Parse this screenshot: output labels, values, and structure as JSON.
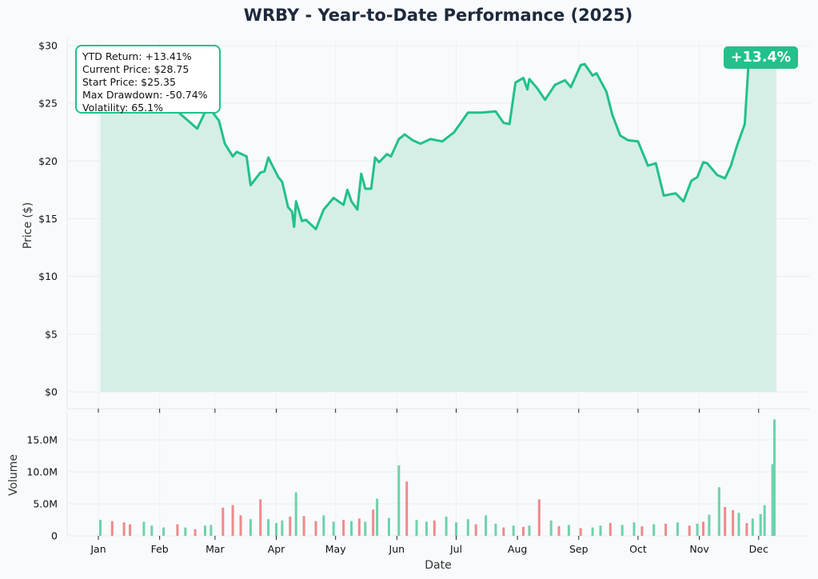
{
  "chart_data": [
    {
      "type": "area",
      "title": "WRBY - Year-to-Date Performance (2025)",
      "ylabel": "Price ($)",
      "yticks": [
        "$0",
        "$5",
        "$10",
        "$15",
        "$20",
        "$25",
        "$30"
      ],
      "ylim": [
        0,
        30
      ],
      "grid": true,
      "line_color": "#22c08a",
      "fill_color": "#d5efe6",
      "x_dates": [
        "2025-01-02",
        "2025-01-10",
        "2025-01-20",
        "2025-01-30",
        "2025-02-10",
        "2025-02-20",
        "2025-02-25",
        "2025-02-27",
        "2025-03-03",
        "2025-03-06",
        "2025-03-10",
        "2025-03-12",
        "2025-03-17",
        "2025-03-19",
        "2025-03-24",
        "2025-03-26",
        "2025-03-28",
        "2025-04-02",
        "2025-04-04",
        "2025-04-07",
        "2025-04-09",
        "2025-04-10",
        "2025-04-11",
        "2025-04-14",
        "2025-04-16",
        "2025-04-21",
        "2025-04-25",
        "2025-04-30",
        "2025-05-05",
        "2025-05-07",
        "2025-05-09",
        "2025-05-12",
        "2025-05-14",
        "2025-05-16",
        "2025-05-19",
        "2025-05-21",
        "2025-05-23",
        "2025-05-27",
        "2025-05-29",
        "2025-06-02",
        "2025-06-05",
        "2025-06-09",
        "2025-06-13",
        "2025-06-18",
        "2025-06-24",
        "2025-06-30",
        "2025-07-07",
        "2025-07-14",
        "2025-07-21",
        "2025-07-25",
        "2025-07-28",
        "2025-07-31",
        "2025-08-04",
        "2025-08-06",
        "2025-08-07",
        "2025-08-11",
        "2025-08-15",
        "2025-08-20",
        "2025-08-25",
        "2025-08-28",
        "2025-09-02",
        "2025-09-04",
        "2025-09-08",
        "2025-09-10",
        "2025-09-15",
        "2025-09-18",
        "2025-09-22",
        "2025-09-26",
        "2025-10-01",
        "2025-10-06",
        "2025-10-10",
        "2025-10-14",
        "2025-10-20",
        "2025-10-24",
        "2025-10-28",
        "2025-10-31",
        "2025-11-03",
        "2025-11-05",
        "2025-11-10",
        "2025-11-14",
        "2025-11-17",
        "2025-11-20",
        "2025-11-24",
        "2025-11-26",
        "2025-12-01",
        "2025-12-03",
        "2025-12-05",
        "2025-12-08",
        "2025-12-09",
        "2025-12-10"
      ],
      "prices": [
        25.35,
        25.2,
        24.8,
        25.6,
        24.3,
        22.8,
        24.6,
        24.4,
        23.5,
        21.5,
        20.4,
        20.8,
        20.4,
        17.9,
        19.0,
        19.1,
        20.3,
        18.6,
        18.2,
        16.0,
        15.6,
        14.3,
        16.5,
        14.8,
        14.9,
        14.1,
        15.8,
        16.8,
        16.2,
        17.5,
        16.5,
        15.8,
        18.9,
        17.6,
        17.6,
        20.3,
        19.9,
        20.6,
        20.4,
        21.9,
        22.3,
        21.8,
        21.5,
        21.9,
        21.7,
        22.5,
        24.2,
        24.2,
        24.3,
        23.3,
        23.2,
        26.8,
        27.2,
        26.2,
        27.1,
        26.3,
        25.3,
        26.6,
        27.0,
        26.4,
        28.3,
        28.4,
        27.4,
        27.6,
        26.0,
        24.0,
        22.2,
        21.8,
        21.7,
        19.6,
        19.8,
        17.0,
        17.2,
        16.5,
        18.3,
        18.6,
        19.9,
        19.8,
        18.8,
        18.5,
        19.6,
        21.3,
        23.2,
        28.75,
        28.75,
        28.75,
        28.75,
        28.75,
        28.75,
        28.75
      ]
    },
    {
      "type": "bar",
      "xlabel": "Date",
      "ylabel": "Volume",
      "yticks": [
        "0",
        "5.0M",
        "10.0M",
        "15.0M"
      ],
      "ylim": [
        0,
        19000000
      ],
      "xticks": [
        "Jan",
        "Feb",
        "Mar",
        "Apr",
        "May",
        "Jun",
        "Jul",
        "Aug",
        "Sep",
        "Oct",
        "Nov",
        "Dec"
      ],
      "xtick_dates": [
        "2025-01-01",
        "2025-02-01",
        "2025-03-01",
        "2025-04-01",
        "2025-05-01",
        "2025-06-01",
        "2025-07-01",
        "2025-08-01",
        "2025-09-01",
        "2025-10-01",
        "2025-11-01",
        "2025-12-01"
      ],
      "up_color": "#6fd1ab",
      "down_color": "#ee8a8a",
      "vol_dates": [
        "2025-01-02",
        "2025-01-08",
        "2025-01-14",
        "2025-01-17",
        "2025-01-24",
        "2025-01-28",
        "2025-02-03",
        "2025-02-10",
        "2025-02-14",
        "2025-02-19",
        "2025-02-24",
        "2025-02-27",
        "2025-03-05",
        "2025-03-10",
        "2025-03-14",
        "2025-03-19",
        "2025-03-24",
        "2025-03-28",
        "2025-04-01",
        "2025-04-04",
        "2025-04-08",
        "2025-04-11",
        "2025-04-15",
        "2025-04-21",
        "2025-04-25",
        "2025-04-30",
        "2025-05-05",
        "2025-05-09",
        "2025-05-13",
        "2025-05-16",
        "2025-05-20",
        "2025-05-22",
        "2025-05-28",
        "2025-06-02",
        "2025-06-06",
        "2025-06-11",
        "2025-06-16",
        "2025-06-20",
        "2025-06-26",
        "2025-07-01",
        "2025-07-07",
        "2025-07-11",
        "2025-07-16",
        "2025-07-21",
        "2025-07-25",
        "2025-07-30",
        "2025-08-04",
        "2025-08-07",
        "2025-08-12",
        "2025-08-18",
        "2025-08-22",
        "2025-08-27",
        "2025-09-02",
        "2025-09-08",
        "2025-09-12",
        "2025-09-17",
        "2025-09-23",
        "2025-09-29",
        "2025-10-03",
        "2025-10-09",
        "2025-10-15",
        "2025-10-21",
        "2025-10-27",
        "2025-10-31",
        "2025-11-03",
        "2025-11-06",
        "2025-11-11",
        "2025-11-14",
        "2025-11-18",
        "2025-11-21",
        "2025-11-25",
        "2025-11-28",
        "2025-12-02",
        "2025-12-04",
        "2025-12-08",
        "2025-12-09"
      ],
      "volumes": [
        2500000,
        2300000,
        2100000,
        1800000,
        2200000,
        1600000,
        1300000,
        1800000,
        1300000,
        1000000,
        1600000,
        1700000,
        4400000,
        4800000,
        3200000,
        2600000,
        5700000,
        2600000,
        2000000,
        2400000,
        3000000,
        6800000,
        3100000,
        2300000,
        3200000,
        2200000,
        2500000,
        2300000,
        2700000,
        2200000,
        4100000,
        5800000,
        2800000,
        11000000,
        8500000,
        2500000,
        2200000,
        2400000,
        3000000,
        2100000,
        2600000,
        1800000,
        3200000,
        1900000,
        1300000,
        1600000,
        1400000,
        1600000,
        5700000,
        2400000,
        1500000,
        1700000,
        1200000,
        1300000,
        1600000,
        2000000,
        1700000,
        2100000,
        1500000,
        1800000,
        1900000,
        2100000,
        1600000,
        1900000,
        2200000,
        3300000,
        7600000,
        4500000,
        4000000,
        3600000,
        2000000,
        2700000,
        3400000,
        4800000,
        11200000,
        18200000
      ],
      "vol_up": [
        true,
        false,
        false,
        false,
        true,
        true,
        true,
        false,
        true,
        false,
        true,
        true,
        false,
        false,
        false,
        true,
        false,
        true,
        true,
        true,
        false,
        true,
        false,
        false,
        true,
        true,
        false,
        true,
        false,
        true,
        false,
        true,
        true,
        true,
        false,
        true,
        true,
        false,
        true,
        true,
        true,
        false,
        true,
        true,
        false,
        true,
        false,
        true,
        false,
        true,
        false,
        true,
        false,
        true,
        true,
        false,
        true,
        true,
        false,
        true,
        false,
        true,
        false,
        true,
        false,
        true,
        true,
        false,
        false,
        true,
        false,
        true,
        true,
        true,
        true,
        true
      ]
    }
  ],
  "stats": {
    "ytd_return": "YTD Return: +13.41%",
    "current_price": "Current Price: $28.75",
    "start_price": "Start Price: $25.35",
    "max_drawdown": "Max Drawdown: -50.74%",
    "volatility": "Volatility: 65.1%"
  },
  "badge": "+13.4%"
}
